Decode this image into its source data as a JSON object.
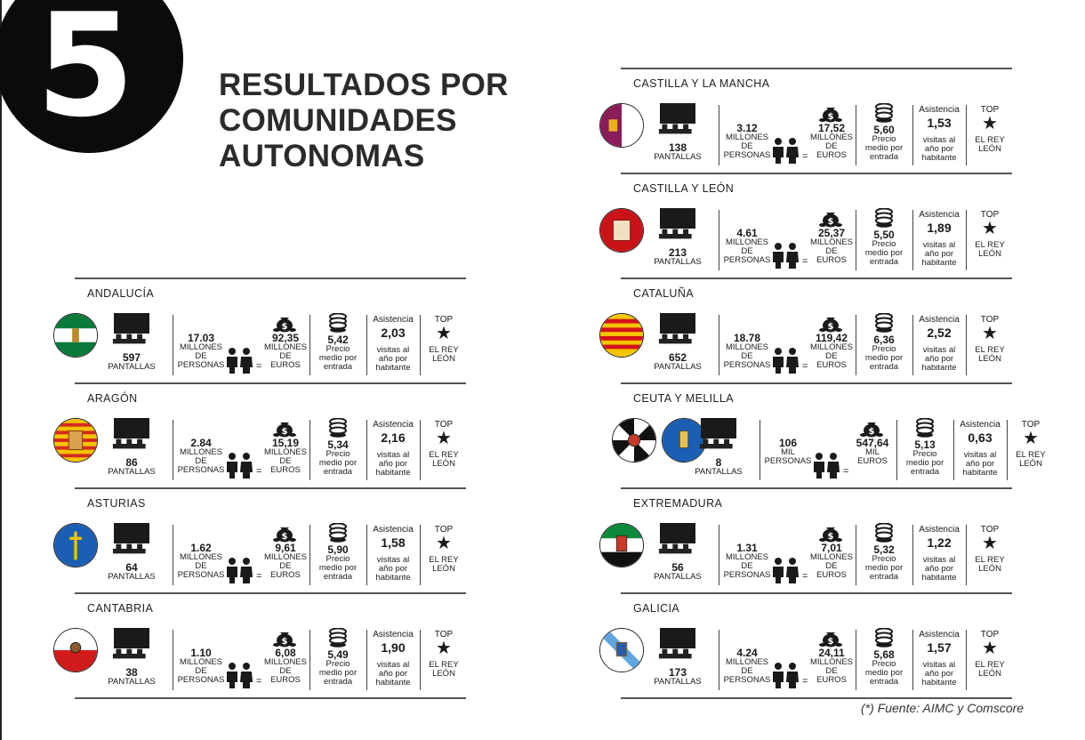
{
  "section_number": "5",
  "title_lines": [
    "RESULTADOS POR",
    "COMUNIDADES",
    "AUTONOMAS"
  ],
  "labels": {
    "pantallas": "PANTALLAS",
    "millones_de_personas": [
      "MILLONES",
      "DE",
      "PERSONAS"
    ],
    "mil_personas": [
      "MIL",
      "PERSONAS"
    ],
    "millones_de_euros": [
      "MILLONES",
      "DE",
      "EUROS"
    ],
    "mil_euros": [
      "MIL",
      "EUROS"
    ],
    "precio": [
      "Precio",
      "medio por",
      "entrada"
    ],
    "asistencia": "Asistencia",
    "visitas": [
      "visitas al",
      "año por",
      "habitante"
    ],
    "top": "TOP",
    "top_title": [
      "EL REY",
      "LEÓN"
    ],
    "equals": "=",
    "star": "★"
  },
  "icons": [
    "cinema-screen-icon",
    "people-icon",
    "money-bag-icon",
    "coins-icon",
    "star-icon"
  ],
  "left_column": [
    {
      "name": "ANDALUCÍA",
      "flag": "andalucia",
      "screens": "597",
      "people": "17.03",
      "people_unit": "millones",
      "euros": "92,35",
      "euros_unit": "millones",
      "price": "5,42",
      "attendance": "2,03"
    },
    {
      "name": "ARAGÓN",
      "flag": "aragon",
      "screens": "86",
      "people": "2.84",
      "people_unit": "millones",
      "euros": "15,19",
      "euros_unit": "millones",
      "price": "5,34",
      "attendance": "2,16"
    },
    {
      "name": "ASTURIAS",
      "flag": "asturias",
      "screens": "64",
      "people": "1.62",
      "people_unit": "millones",
      "euros": "9,61",
      "euros_unit": "millones",
      "price": "5,90",
      "attendance": "1,58"
    },
    {
      "name": "CANTABRIA",
      "flag": "cantabria",
      "screens": "38",
      "people": "1.10",
      "people_unit": "millones",
      "euros": "6,08",
      "euros_unit": "millones",
      "price": "5,49",
      "attendance": "1,90"
    }
  ],
  "right_column": [
    {
      "name": "CASTILLA Y LA MANCHA",
      "flag": "castilla_la_mancha",
      "screens": "138",
      "people": "3.12",
      "people_unit": "millones",
      "euros": "17,52",
      "euros_unit": "millones",
      "price": "5,60",
      "attendance": "1,53"
    },
    {
      "name": "CASTILLA Y LEÓN",
      "flag": "castilla_leon",
      "screens": "213",
      "people": "4.61",
      "people_unit": "millones",
      "euros": "25,37",
      "euros_unit": "millones",
      "price": "5,50",
      "attendance": "1,89"
    },
    {
      "name": "CATALUÑA",
      "flag": "cataluna",
      "screens": "652",
      "people": "18.78",
      "people_unit": "millones",
      "euros": "119,42",
      "euros_unit": "millones",
      "price": "6,36",
      "attendance": "2,52"
    },
    {
      "name": "CEUTA Y MELILLA",
      "flag": "ceuta_melilla",
      "screens": "8",
      "people": "106",
      "people_unit": "mil",
      "euros": "547,64",
      "euros_unit": "mil",
      "price": "5,13",
      "attendance": "0,63"
    },
    {
      "name": "EXTREMADURA",
      "flag": "extremadura",
      "screens": "56",
      "people": "1.31",
      "people_unit": "millones",
      "euros": "7,01",
      "euros_unit": "millones",
      "price": "5,32",
      "attendance": "1,22"
    },
    {
      "name": "GALICIA",
      "flag": "galicia",
      "screens": "173",
      "people": "4.24",
      "people_unit": "millones",
      "euros": "24,11",
      "euros_unit": "millones",
      "price": "5,68",
      "attendance": "1,57"
    }
  ],
  "source": "(*) Fuente: AIMC y Comscore",
  "colors": {
    "dark": "#1a1a1a",
    "andalucia_green": "#0a7a3a",
    "aragon_red": "#d62a1e",
    "aragon_yellow": "#f3c300",
    "asturias_blue": "#1a5fb4",
    "cantabria_red": "#d11a1a",
    "clm_purple": "#8a1c5a",
    "cyl_red": "#c91318",
    "cataluna_yellow": "#f5c400",
    "cataluna_red": "#d4121a",
    "extremadura_green": "#0a8a3a",
    "galicia_blue": "#5fa6e0"
  }
}
